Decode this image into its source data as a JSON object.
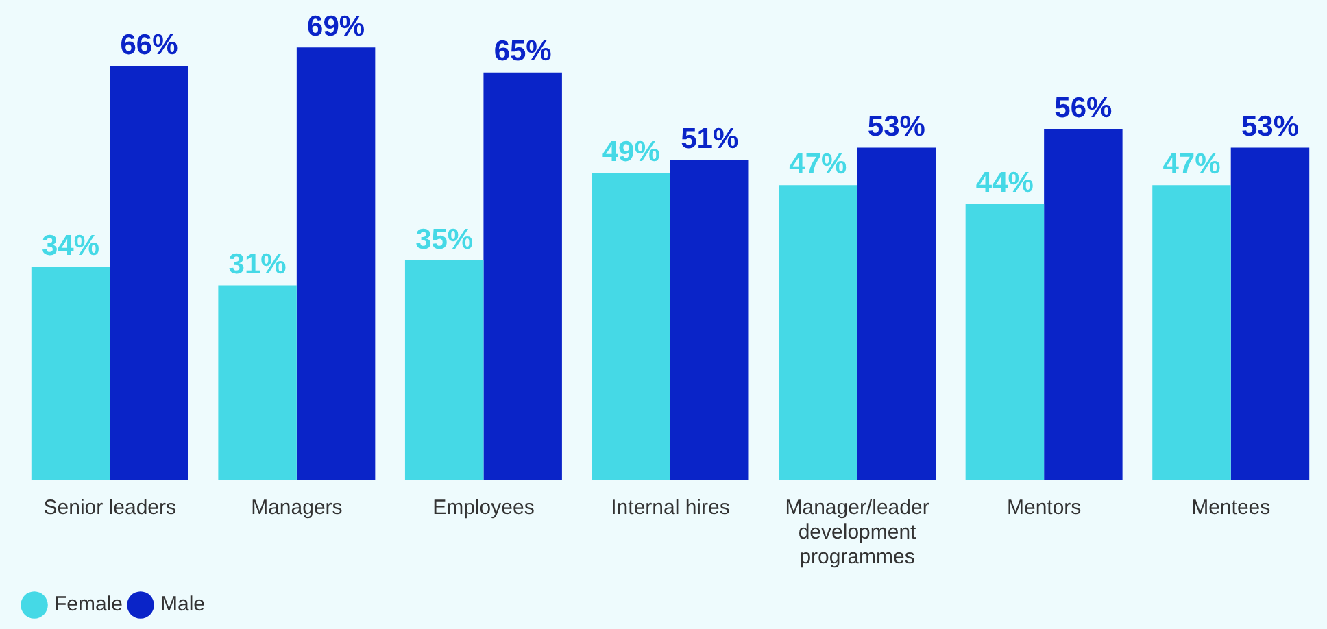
{
  "chart_data": {
    "type": "bar",
    "categories": [
      "Senior leaders",
      "Managers",
      "Employees",
      "Internal hires",
      "Manager/leader development programmes",
      "Mentors",
      "Mentees"
    ],
    "series": [
      {
        "name": "Female",
        "color": "#45d9e6",
        "values": [
          34,
          31,
          35,
          49,
          47,
          44,
          47
        ],
        "value_labels": [
          "34%",
          "31%",
          "35%",
          "49%",
          "47%",
          "44%",
          "47%"
        ]
      },
      {
        "name": "Male",
        "color": "#0a24c8",
        "values": [
          66,
          69,
          65,
          51,
          53,
          56,
          53
        ],
        "value_labels": [
          "66%",
          "69%",
          "65%",
          "51%",
          "53%",
          "56%",
          "53%"
        ]
      }
    ],
    "legend": "bottom left",
    "grid": false,
    "tick_labels": "x"
  }
}
